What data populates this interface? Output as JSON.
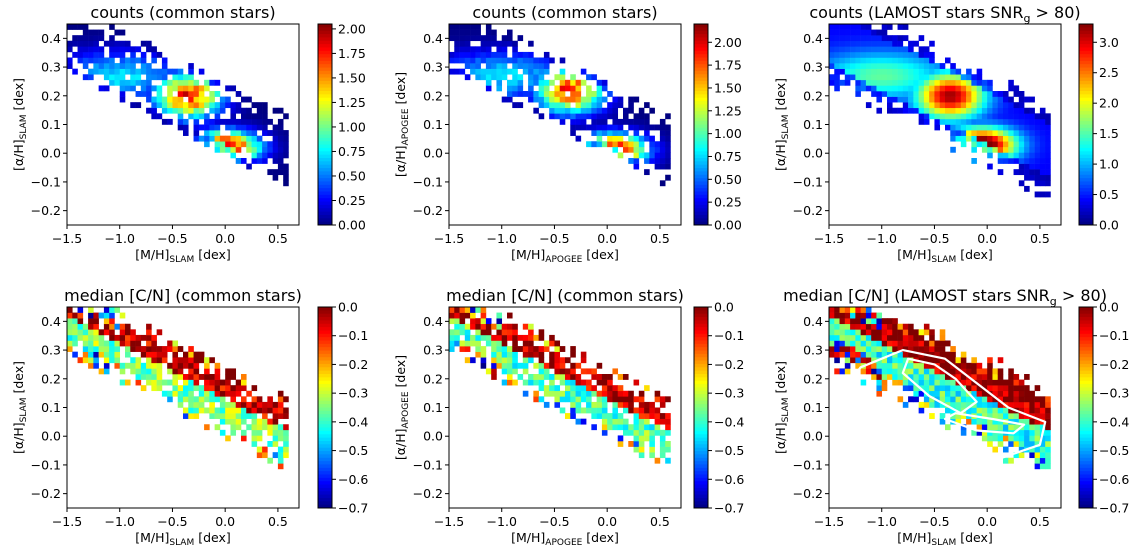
{
  "colormap": "jet",
  "colors": {
    "jet_stops": [
      "#00007f",
      "#0000ff",
      "#007fff",
      "#00ffff",
      "#7fff7f",
      "#ffff00",
      "#ff7f00",
      "#ff0000",
      "#7f0000"
    ],
    "contour": "#ffffff",
    "background": "#ffffff"
  },
  "chart_data": [
    {
      "type": "heatmap",
      "title": "counts (common stars)",
      "xlabel": {
        "main": "[M/H]",
        "sub": "SLAM",
        "unit": " [dex]"
      },
      "ylabel": {
        "main": "[α/H]",
        "sub": "SLAM",
        "unit": " [dex]"
      },
      "xlim": [
        -1.5,
        0.7
      ],
      "ylim": [
        -0.25,
        0.45
      ],
      "xticks": [
        "−1.5",
        "−1.0",
        "−0.5",
        "0.0",
        "0.5"
      ],
      "yticks": [
        "−0.2",
        "−0.1",
        "0.0",
        "0.1",
        "0.2",
        "0.3",
        "0.4"
      ],
      "colorbar": {
        "range": [
          0.0,
          2.05
        ],
        "ticks": [
          "0.00",
          "0.25",
          "0.50",
          "0.75",
          "1.00",
          "1.25",
          "1.50",
          "1.75",
          "2.00"
        ]
      },
      "density": {
        "high_alpha_peak": [
          -0.35,
          0.2
        ],
        "low_alpha_peak": [
          0.0,
          0.02
        ],
        "peak_value": 2.0
      },
      "contours": false
    },
    {
      "type": "heatmap",
      "title": "counts (common stars)",
      "xlabel": {
        "main": "[M/H]",
        "sub": "APOGEE",
        "unit": " [dex]"
      },
      "ylabel": {
        "main": "[α/H]",
        "sub": "APOGEE",
        "unit": " [dex]"
      },
      "xlim": [
        -1.5,
        0.7
      ],
      "ylim": [
        -0.25,
        0.45
      ],
      "xticks": [
        "−1.5",
        "−1.0",
        "−0.5",
        "0.0",
        "0.5"
      ],
      "yticks": [
        "−0.2",
        "−0.1",
        "0.0",
        "0.1",
        "0.2",
        "0.3",
        "0.4"
      ],
      "colorbar": {
        "range": [
          0.0,
          2.2
        ],
        "ticks": [
          "0.00",
          "0.25",
          "0.50",
          "0.75",
          "1.00",
          "1.25",
          "1.50",
          "1.75",
          "2.00"
        ]
      },
      "density": {
        "high_alpha_peak": [
          -0.35,
          0.22
        ],
        "low_alpha_peak": [
          0.05,
          0.01
        ],
        "peak_value": 2.15
      },
      "contours": false
    },
    {
      "type": "heatmap",
      "title": "counts (LAMOST stars SNR",
      "title_sub": "g",
      "title_end": " > 80)",
      "xlabel": {
        "main": "[M/H]",
        "sub": "SLAM",
        "unit": " [dex]"
      },
      "ylabel": {
        "main": "[α/H]",
        "sub": "SLAM",
        "unit": " [dex]"
      },
      "xlim": [
        -1.5,
        0.7
      ],
      "ylim": [
        -0.25,
        0.45
      ],
      "xticks": [
        "−1.5",
        "−1.0",
        "−0.5",
        "0.0",
        "0.5"
      ],
      "yticks": [
        "−0.2",
        "−0.1",
        "0.0",
        "0.1",
        "0.2",
        "0.3",
        "0.4"
      ],
      "colorbar": {
        "range": [
          0.0,
          3.3
        ],
        "ticks": [
          "0.0",
          "0.5",
          "1.0",
          "1.5",
          "2.0",
          "2.5",
          "3.0"
        ]
      },
      "density": {
        "high_alpha_peak": [
          -0.35,
          0.2
        ],
        "low_alpha_peak": [
          -0.05,
          0.03
        ],
        "peak_value": 3.25
      },
      "contours": false
    },
    {
      "type": "heatmap",
      "title": "median [C/N] (common stars)",
      "xlabel": {
        "main": "[M/H]",
        "sub": "SLAM",
        "unit": " [dex]"
      },
      "ylabel": {
        "main": "[α/H]",
        "sub": "SLAM",
        "unit": " [dex]"
      },
      "xlim": [
        -1.5,
        0.7
      ],
      "ylim": [
        -0.25,
        0.45
      ],
      "xticks": [
        "−1.5",
        "−1.0",
        "−0.5",
        "0.0",
        "0.5"
      ],
      "yticks": [
        "−0.2",
        "−0.1",
        "0.0",
        "0.1",
        "0.2",
        "0.3",
        "0.4"
      ],
      "colorbar": {
        "range": [
          -0.7,
          0.0
        ],
        "ticks": [
          "0.0",
          "−0.1",
          "−0.2",
          "−0.3",
          "−0.4",
          "−0.5",
          "−0.6",
          "−0.7"
        ]
      },
      "cn_levels": {
        "high_alpha": -0.05,
        "low_alpha": -0.35
      },
      "contours": false
    },
    {
      "type": "heatmap",
      "title": "median [C/N] (common stars)",
      "xlabel": {
        "main": "[M/H]",
        "sub": "APOGEE",
        "unit": " [dex]"
      },
      "ylabel": {
        "main": "[α/H]",
        "sub": "APOGEE",
        "unit": " [dex]"
      },
      "xlim": [
        -1.5,
        0.7
      ],
      "ylim": [
        -0.25,
        0.45
      ],
      "xticks": [
        "−1.5",
        "−1.0",
        "−0.5",
        "0.0",
        "0.5"
      ],
      "yticks": [
        "−0.2",
        "−0.1",
        "0.0",
        "0.1",
        "0.2",
        "0.3",
        "0.4"
      ],
      "colorbar": {
        "range": [
          -0.7,
          0.0
        ],
        "ticks": [
          "0.0",
          "−0.1",
          "−0.2",
          "−0.3",
          "−0.4",
          "−0.5",
          "−0.6",
          "−0.7"
        ]
      },
      "cn_levels": {
        "high_alpha": -0.05,
        "low_alpha": -0.38
      },
      "contours": false
    },
    {
      "type": "heatmap",
      "title": "median [C/N] (LAMOST stars SNR",
      "title_sub": "g",
      "title_end": " > 80)",
      "xlabel": {
        "main": "[M/H]",
        "sub": "SLAM",
        "unit": " [dex]"
      },
      "ylabel": {
        "main": "[α/H]",
        "sub": "SLAM",
        "unit": " [dex]"
      },
      "xlim": [
        -1.5,
        0.7
      ],
      "ylim": [
        -0.25,
        0.45
      ],
      "xticks": [
        "−1.5",
        "−1.0",
        "−0.5",
        "0.0",
        "0.5"
      ],
      "yticks": [
        "−0.2",
        "−0.1",
        "0.0",
        "0.1",
        "0.2",
        "0.3",
        "0.4"
      ],
      "colorbar": {
        "range": [
          -0.7,
          0.0
        ],
        "ticks": [
          "0.0",
          "−0.1",
          "−0.2",
          "−0.3",
          "−0.4",
          "−0.5",
          "−0.6",
          "−0.7"
        ]
      },
      "cn_levels": {
        "high_alpha": -0.02,
        "low_alpha": -0.4
      },
      "contours": true
    }
  ]
}
